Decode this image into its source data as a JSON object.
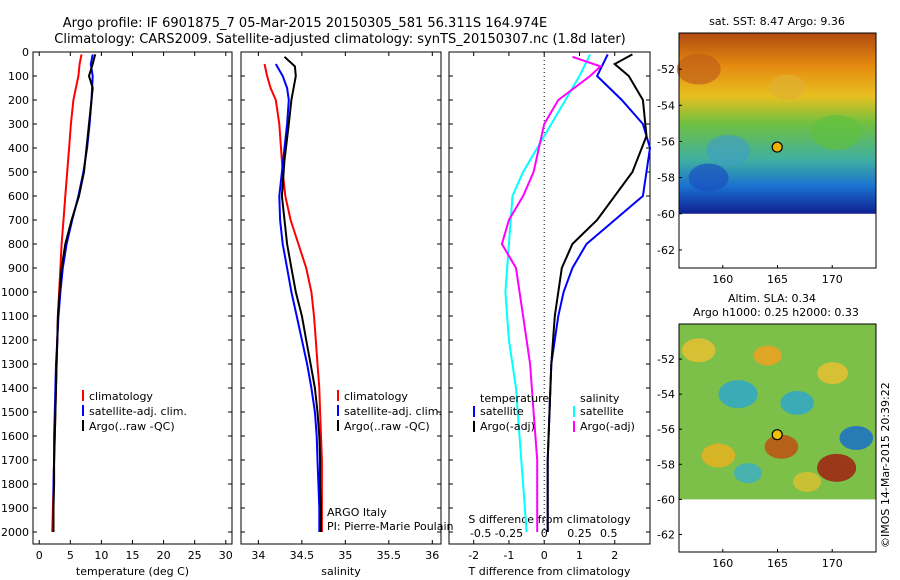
{
  "title_lines": [
    "Argo profile: IF 6901875_7 05-Mar-2015 20150305_581 56.311S 164.974E",
    "Climatology: CARS2009. Satellite-adjusted climatology: synTS_20150307.nc (1.8d later)"
  ],
  "colors": {
    "climatology": "#ff0000",
    "satellite": "#0000ff",
    "argo": "#000000",
    "sat_salinity": "#00ffff",
    "argo_salinity": "#ff00ff"
  },
  "chart_data": [
    {
      "type": "line",
      "xlabel": "temperature (deg C)",
      "xlim": [
        -1,
        31
      ],
      "xticks": [
        0,
        5,
        10,
        15,
        20,
        25,
        30
      ],
      "ylim": [
        0,
        2050
      ],
      "yticks": [
        0,
        100,
        200,
        300,
        400,
        500,
        600,
        700,
        800,
        900,
        1000,
        1100,
        1200,
        1300,
        1400,
        1500,
        1600,
        1700,
        1800,
        1900,
        2000
      ],
      "legend": [
        "climatology",
        "satellite-adj. clim.",
        "Argo(..raw -QC)"
      ],
      "series": [
        {
          "name": "climatology",
          "color": "#ff0000",
          "points": [
            [
              6.8,
              10
            ],
            [
              6.5,
              50
            ],
            [
              6.3,
              100
            ],
            [
              5.9,
              150
            ],
            [
              5.5,
              200
            ],
            [
              5.1,
              300
            ],
            [
              4.8,
              400
            ],
            [
              4.5,
              500
            ],
            [
              4.2,
              600
            ],
            [
              3.9,
              700
            ],
            [
              3.6,
              800
            ],
            [
              3.4,
              900
            ],
            [
              3.2,
              1000
            ],
            [
              3.0,
              1100
            ],
            [
              2.9,
              1200
            ],
            [
              2.8,
              1300
            ],
            [
              2.7,
              1400
            ],
            [
              2.6,
              1500
            ],
            [
              2.5,
              1600
            ],
            [
              2.4,
              1700
            ],
            [
              2.3,
              1800
            ],
            [
              2.2,
              1900
            ],
            [
              2.1,
              2000
            ]
          ]
        },
        {
          "name": "satellite-adj. clim.",
          "color": "#0000ff",
          "points": [
            [
              8.6,
              10
            ],
            [
              8.3,
              50
            ],
            [
              8.6,
              100
            ],
            [
              8.5,
              150
            ],
            [
              8.4,
              200
            ],
            [
              8.1,
              300
            ],
            [
              7.7,
              400
            ],
            [
              7.1,
              500
            ],
            [
              6.3,
              600
            ],
            [
              5.3,
              700
            ],
            [
              4.4,
              800
            ],
            [
              3.8,
              900
            ],
            [
              3.4,
              1000
            ],
            [
              3.1,
              1100
            ],
            [
              2.9,
              1200
            ],
            [
              2.7,
              1300
            ],
            [
              2.6,
              1400
            ],
            [
              2.5,
              1500
            ],
            [
              2.4,
              1600
            ],
            [
              2.4,
              1700
            ],
            [
              2.3,
              1800
            ],
            [
              2.3,
              1900
            ],
            [
              2.3,
              2000
            ]
          ]
        },
        {
          "name": "Argo(..raw -QC)",
          "color": "#000000",
          "points": [
            [
              9.0,
              10
            ],
            [
              8.6,
              50
            ],
            [
              8.0,
              100
            ],
            [
              8.6,
              150
            ],
            [
              8.4,
              200
            ],
            [
              8.0,
              300
            ],
            [
              7.6,
              400
            ],
            [
              7.2,
              500
            ],
            [
              6.4,
              600
            ],
            [
              5.2,
              700
            ],
            [
              4.2,
              800
            ],
            [
              3.6,
              900
            ],
            [
              3.3,
              1000
            ],
            [
              3.0,
              1100
            ],
            [
              2.9,
              1200
            ],
            [
              2.8,
              1300
            ],
            [
              2.7,
              1400
            ],
            [
              2.6,
              1500
            ],
            [
              2.5,
              1600
            ],
            [
              2.4,
              1700
            ],
            [
              2.4,
              1800
            ],
            [
              2.3,
              1900
            ],
            [
              2.3,
              2000
            ]
          ]
        }
      ]
    },
    {
      "type": "line",
      "xlabel": "salinity",
      "xlim": [
        33.8,
        36.1
      ],
      "xticks": [
        34,
        34.5,
        35,
        35.5,
        36
      ],
      "xticklabels": [
        "34",
        "34.5",
        "35",
        "35.5",
        "36"
      ],
      "ylim": [
        0,
        2050
      ],
      "legend": [
        "climatology",
        "satellite-adj. clim.",
        "Argo(..raw -QC)"
      ],
      "annotation": [
        "ARGO Italy",
        "PI: Pierre-Marie Poulain"
      ],
      "series": [
        {
          "name": "climatology",
          "color": "#ff0000",
          "points": [
            [
              34.07,
              50
            ],
            [
              34.1,
              100
            ],
            [
              34.14,
              150
            ],
            [
              34.2,
              200
            ],
            [
              34.24,
              300
            ],
            [
              34.26,
              400
            ],
            [
              34.28,
              500
            ],
            [
              34.31,
              600
            ],
            [
              34.37,
              700
            ],
            [
              34.46,
              800
            ],
            [
              34.55,
              900
            ],
            [
              34.61,
              1000
            ],
            [
              34.64,
              1100
            ],
            [
              34.66,
              1200
            ],
            [
              34.68,
              1300
            ],
            [
              34.7,
              1400
            ],
            [
              34.71,
              1500
            ],
            [
              34.72,
              1600
            ],
            [
              34.73,
              1700
            ],
            [
              34.73,
              1800
            ],
            [
              34.73,
              1900
            ],
            [
              34.73,
              2000
            ]
          ]
        },
        {
          "name": "satellite-adj. clim.",
          "color": "#0000ff",
          "points": [
            [
              34.2,
              50
            ],
            [
              34.28,
              100
            ],
            [
              34.33,
              150
            ],
            [
              34.35,
              200
            ],
            [
              34.33,
              300
            ],
            [
              34.3,
              400
            ],
            [
              34.27,
              500
            ],
            [
              34.24,
              600
            ],
            [
              34.25,
              700
            ],
            [
              34.28,
              800
            ],
            [
              34.33,
              900
            ],
            [
              34.38,
              1000
            ],
            [
              34.44,
              1100
            ],
            [
              34.5,
              1200
            ],
            [
              34.56,
              1300
            ],
            [
              34.61,
              1400
            ],
            [
              34.65,
              1500
            ],
            [
              34.67,
              1600
            ],
            [
              34.68,
              1700
            ],
            [
              34.69,
              1800
            ],
            [
              34.7,
              1900
            ],
            [
              34.7,
              2000
            ]
          ]
        },
        {
          "name": "Argo(..raw -QC)",
          "color": "#000000",
          "points": [
            [
              34.3,
              20
            ],
            [
              34.42,
              60
            ],
            [
              34.43,
              100
            ],
            [
              34.38,
              200
            ],
            [
              34.35,
              300
            ],
            [
              34.3,
              450
            ],
            [
              34.27,
              600
            ],
            [
              34.3,
              700
            ],
            [
              34.33,
              800
            ],
            [
              34.38,
              900
            ],
            [
              34.43,
              1000
            ],
            [
              34.5,
              1100
            ],
            [
              34.55,
              1200
            ],
            [
              34.6,
              1300
            ],
            [
              34.65,
              1400
            ],
            [
              34.68,
              1500
            ],
            [
              34.7,
              1600
            ],
            [
              34.71,
              1700
            ],
            [
              34.71,
              1800
            ],
            [
              34.72,
              1900
            ],
            [
              34.72,
              2000
            ]
          ]
        }
      ]
    },
    {
      "type": "line",
      "xlabel": "T difference from climatology",
      "xlabel2": "S difference from climatology",
      "xlim": [
        -2.7,
        3.0
      ],
      "xticks": [
        -2,
        -1,
        0,
        1,
        2
      ],
      "s_ticklabels": [
        "-0.5",
        "-0.25",
        "0",
        "0.25",
        "0.5"
      ],
      "ylim": [
        0,
        2050
      ],
      "legend_left_title": "temperature",
      "legend_right_title": "salinity",
      "legend_left": [
        "satellite",
        "Argo(-adj)"
      ],
      "legend_right": [
        "satellite",
        "Argo(-adj)"
      ],
      "series": [
        {
          "name": "T satellite",
          "color": "#0000ff",
          "points": [
            [
              1.8,
              10
            ],
            [
              1.5,
              100
            ],
            [
              2.2,
              200
            ],
            [
              2.8,
              300
            ],
            [
              3.0,
              400
            ],
            [
              2.8,
              600
            ],
            [
              2.0,
              700
            ],
            [
              1.2,
              800
            ],
            [
              0.8,
              900
            ],
            [
              0.55,
              1000
            ],
            [
              0.4,
              1100
            ],
            [
              0.3,
              1200
            ],
            [
              0.2,
              1300
            ],
            [
              0.15,
              1500
            ],
            [
              0.1,
              1700
            ],
            [
              0.1,
              2000
            ]
          ]
        },
        {
          "name": "T Argo(-adj)",
          "color": "#000000",
          "points": [
            [
              2.5,
              10
            ],
            [
              2.0,
              50
            ],
            [
              2.4,
              100
            ],
            [
              2.8,
              200
            ],
            [
              2.9,
              350
            ],
            [
              2.5,
              500
            ],
            [
              1.5,
              700
            ],
            [
              0.8,
              800
            ],
            [
              0.5,
              900
            ],
            [
              0.3,
              1100
            ],
            [
              0.2,
              1300
            ],
            [
              0.15,
              1500
            ],
            [
              0.1,
              1700
            ],
            [
              0.1,
              2000
            ]
          ]
        },
        {
          "name": "S satellite",
          "color": "#00ffff",
          "points": [
            [
              1.3,
              10
            ],
            [
              1.0,
              100
            ],
            [
              0.6,
              200
            ],
            [
              0.2,
              300
            ],
            [
              -0.2,
              400
            ],
            [
              -0.6,
              500
            ],
            [
              -0.9,
              600
            ],
            [
              -1.0,
              800
            ],
            [
              -1.1,
              1000
            ],
            [
              -1.0,
              1200
            ],
            [
              -0.8,
              1400
            ],
            [
              -0.7,
              1600
            ],
            [
              -0.6,
              1800
            ],
            [
              -0.5,
              2000
            ]
          ]
        },
        {
          "name": "S Argo(-adj)",
          "color": "#ff00ff",
          "points": [
            [
              0.8,
              20
            ],
            [
              1.6,
              60
            ],
            [
              1.3,
              100
            ],
            [
              0.4,
              200
            ],
            [
              0.0,
              300
            ],
            [
              -0.3,
              500
            ],
            [
              -0.6,
              600
            ],
            [
              -1.0,
              700
            ],
            [
              -1.2,
              800
            ],
            [
              -0.8,
              900
            ],
            [
              -0.6,
              1100
            ],
            [
              -0.4,
              1300
            ],
            [
              -0.3,
              1500
            ],
            [
              -0.2,
              1700
            ],
            [
              -0.2,
              2000
            ]
          ]
        }
      ]
    }
  ],
  "map_sst": {
    "title": "sat. SST: 8.47  Argo: 9.36",
    "xticks": [
      160,
      165,
      170
    ],
    "yticks": [
      -52,
      -54,
      -56,
      -58,
      -60,
      -62
    ],
    "xlim": [
      156,
      174
    ],
    "ylim": [
      -63,
      -50
    ],
    "data_lat_min": -60,
    "marker": {
      "lon": 164.974,
      "lat": -56.311
    }
  },
  "map_sla": {
    "title_lines": [
      "Altim. SLA: 0.34",
      "Argo h1000: 0.25 h2000: 0.33"
    ],
    "xticks": [
      160,
      165,
      170
    ],
    "yticks": [
      -52,
      -54,
      -56,
      -58,
      -60,
      -62
    ],
    "xlim": [
      156,
      174
    ],
    "ylim": [
      -63,
      -50
    ],
    "data_lat_min": -60,
    "marker": {
      "lon": 164.974,
      "lat": -56.311
    }
  },
  "footer": "©IMOS 14-Mar-2015 20:39:22"
}
